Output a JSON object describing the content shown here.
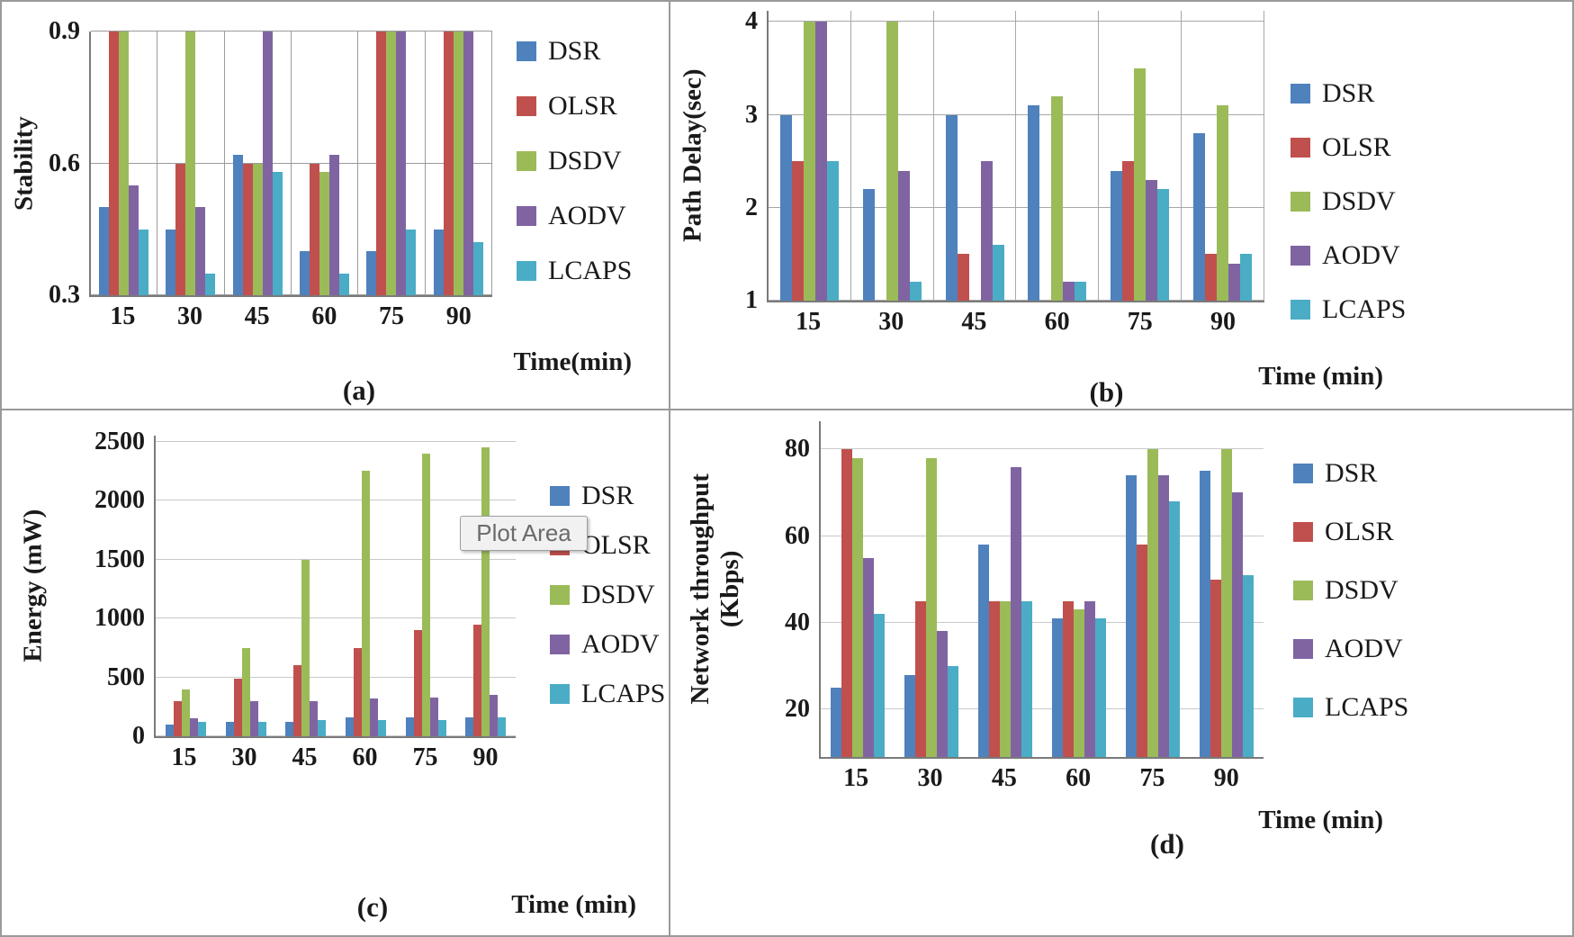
{
  "figure": {
    "description": "2x2 grid of grouped bar charts comparing routing protocols over time",
    "colors": {
      "DSR": "#4F81BD",
      "OLSR": "#C0504D",
      "DSDV": "#9BBB59",
      "AODV": "#8064A2",
      "LCAPS": "#4BACC6",
      "axis": "#7a7a7a"
    }
  },
  "chart_data": [
    {
      "id": "a",
      "type": "bar",
      "caption": "(a)",
      "ylabel_lines": [
        "Stability"
      ],
      "xlabel": "Time(min)",
      "categories": [
        "15",
        "30",
        "45",
        "60",
        "75",
        "90"
      ],
      "ytick_values": [
        0.3,
        0.6,
        0.9
      ],
      "ytick_labels": [
        "0.3",
        "0.6",
        "0.9"
      ],
      "ylim": [
        0.3,
        0.9
      ],
      "grid": {
        "horizontal": true,
        "vertical": true
      },
      "legend_position": "right",
      "series": [
        {
          "name": "DSR",
          "color": "#4F81BD",
          "values": [
            0.5,
            0.45,
            0.62,
            0.4,
            0.4,
            0.45
          ]
        },
        {
          "name": "OLSR",
          "color": "#C0504D",
          "values": [
            0.9,
            0.6,
            0.6,
            0.6,
            0.9,
            0.9
          ]
        },
        {
          "name": "DSDV",
          "color": "#9BBB59",
          "values": [
            0.9,
            0.9,
            0.6,
            0.58,
            0.9,
            0.9
          ]
        },
        {
          "name": "AODV",
          "color": "#8064A2",
          "values": [
            0.55,
            0.5,
            0.9,
            0.62,
            0.9,
            0.9
          ]
        },
        {
          "name": "LCAPS",
          "color": "#4BACC6",
          "values": [
            0.45,
            0.35,
            0.58,
            0.35,
            0.45,
            0.42
          ]
        }
      ]
    },
    {
      "id": "b",
      "type": "bar",
      "caption": "(b)",
      "ylabel_lines": [
        "Path Delay(sec)"
      ],
      "xlabel": "Time (min)",
      "categories": [
        "15",
        "30",
        "45",
        "60",
        "75",
        "90"
      ],
      "ytick_values": [
        1,
        2,
        3,
        4
      ],
      "ytick_labels": [
        "1",
        "2",
        "3",
        "4"
      ],
      "ylim": [
        1,
        4.12
      ],
      "grid": {
        "horizontal": true,
        "vertical": true
      },
      "legend_position": "right",
      "series": [
        {
          "name": "DSR",
          "color": "#4F81BD",
          "values": [
            3.0,
            2.2,
            3.0,
            3.1,
            2.4,
            2.8
          ]
        },
        {
          "name": "OLSR",
          "color": "#C0504D",
          "values": [
            2.5,
            1.0,
            1.5,
            1.0,
            2.5,
            1.5
          ]
        },
        {
          "name": "DSDV",
          "color": "#9BBB59",
          "values": [
            4.0,
            4.0,
            1.0,
            3.2,
            3.5,
            3.1
          ]
        },
        {
          "name": "AODV",
          "color": "#8064A2",
          "values": [
            4.0,
            2.4,
            2.5,
            1.2,
            2.3,
            1.4
          ]
        },
        {
          "name": "LCAPS",
          "color": "#4BACC6",
          "values": [
            2.5,
            1.2,
            1.6,
            1.2,
            2.2,
            1.5
          ]
        }
      ]
    },
    {
      "id": "c",
      "type": "bar",
      "caption": "(c)",
      "ylabel_lines": [
        "Energy (mW)"
      ],
      "xlabel": "Time (min)",
      "tooltip": "Plot Area",
      "categories": [
        "15",
        "30",
        "45",
        "60",
        "75",
        "90"
      ],
      "ytick_values": [
        0,
        500,
        1000,
        1500,
        2000,
        2500
      ],
      "ytick_labels": [
        "0",
        "500",
        "1000",
        "1500",
        "2000",
        "2500"
      ],
      "ylim": [
        0,
        2550
      ],
      "grid": {
        "horizontal": true,
        "vertical": false
      },
      "legend_position": "right",
      "series": [
        {
          "name": "DSR",
          "color": "#4F81BD",
          "values": [
            100,
            120,
            120,
            160,
            160,
            160
          ]
        },
        {
          "name": "OLSR",
          "color": "#C0504D",
          "values": [
            300,
            490,
            600,
            750,
            900,
            950
          ]
        },
        {
          "name": "DSDV",
          "color": "#9BBB59",
          "values": [
            400,
            750,
            1500,
            2250,
            2400,
            2450
          ]
        },
        {
          "name": "AODV",
          "color": "#8064A2",
          "values": [
            150,
            300,
            300,
            320,
            330,
            350
          ]
        },
        {
          "name": "LCAPS",
          "color": "#4BACC6",
          "values": [
            120,
            120,
            140,
            140,
            140,
            160
          ]
        }
      ]
    },
    {
      "id": "d",
      "type": "bar",
      "caption": "(d)",
      "ylabel_lines": [
        "Network throughput",
        "(Kbps)"
      ],
      "xlabel": "Time (min)",
      "categories": [
        "15",
        "30",
        "45",
        "60",
        "75",
        "90"
      ],
      "ytick_values": [
        20,
        40,
        60,
        80
      ],
      "ytick_labels": [
        "20",
        "40",
        "60",
        "80"
      ],
      "ylim": [
        9,
        86.5
      ],
      "grid": {
        "horizontal": true,
        "vertical": false
      },
      "legend_position": "right",
      "series": [
        {
          "name": "DSR",
          "color": "#4F81BD",
          "values": [
            25,
            28,
            58,
            41,
            74,
            75
          ]
        },
        {
          "name": "OLSR",
          "color": "#C0504D",
          "values": [
            80,
            45,
            45,
            45,
            58,
            50
          ]
        },
        {
          "name": "DSDV",
          "color": "#9BBB59",
          "values": [
            78,
            78,
            45,
            43,
            80,
            80
          ]
        },
        {
          "name": "AODV",
          "color": "#8064A2",
          "values": [
            55,
            38,
            76,
            45,
            74,
            70
          ]
        },
        {
          "name": "LCAPS",
          "color": "#4BACC6",
          "values": [
            42,
            30,
            45,
            41,
            68,
            51
          ]
        }
      ]
    }
  ]
}
